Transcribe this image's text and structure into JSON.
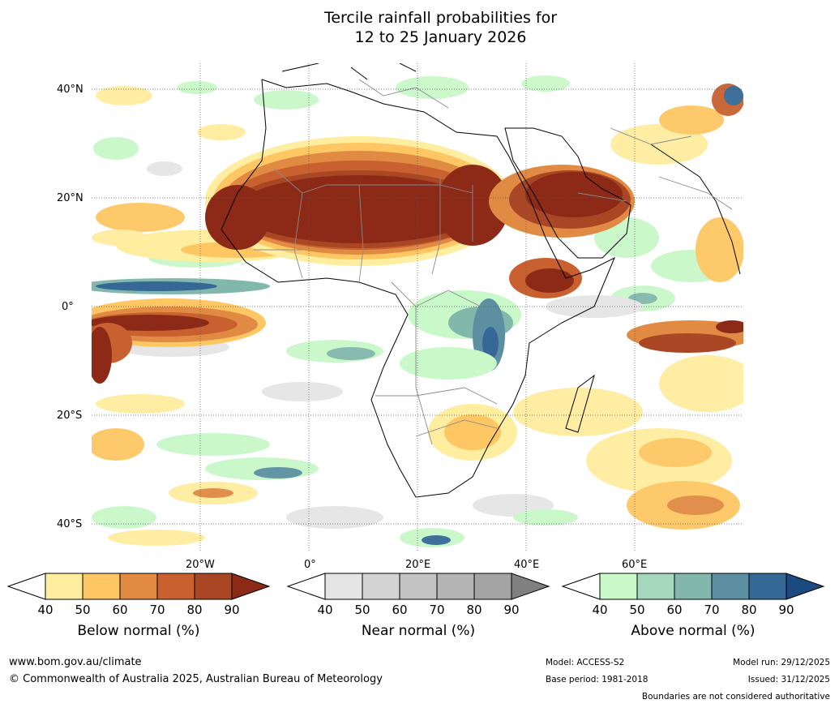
{
  "title": {
    "line1": "Tercile rainfall probabilities for",
    "line2": "12 to 25 January 2026"
  },
  "axes": {
    "lat_labels": [
      "40°N",
      "20°N",
      "0°",
      "20°S",
      "40°S"
    ],
    "lon_labels": [
      "20°W",
      "0°",
      "20°E",
      "40°E",
      "60°E"
    ]
  },
  "legend": {
    "below": {
      "name": "Below normal (%)",
      "ticks": [
        "40",
        "50",
        "60",
        "70",
        "80",
        "90"
      ],
      "colors": [
        "#ffffff",
        "#ffeda0",
        "#fec763",
        "#e08a43",
        "#c8602f",
        "#a94724",
        "#8c2a17"
      ]
    },
    "near": {
      "name": "Near normal (%)",
      "ticks": [
        "40",
        "50",
        "60",
        "70",
        "80",
        "90"
      ],
      "colors": [
        "#ffffff",
        "#e5e5e5",
        "#d3d3d3",
        "#c3c3c3",
        "#b4b4b4",
        "#a3a3a3",
        "#808080"
      ]
    },
    "above": {
      "name": "Above normal (%)",
      "ticks": [
        "40",
        "50",
        "60",
        "70",
        "80",
        "90"
      ],
      "colors": [
        "#ffffff",
        "#c9f8c9",
        "#a6d8bd",
        "#82b8ac",
        "#5c90a0",
        "#356896",
        "#1a4a80"
      ]
    }
  },
  "footer": {
    "website": "www.bom.gov.au/climate",
    "copyright": "© Commonwealth of Australia 2025, Australian Bureau of Meteorology",
    "model": "Model: ACCESS-S2",
    "base_period": "Base period: 1981-2018",
    "model_run": "Model run: 29/12/2025",
    "issued": "Issued: 31/12/2025",
    "disclaimer": "Boundaries are not considered authoritative"
  }
}
